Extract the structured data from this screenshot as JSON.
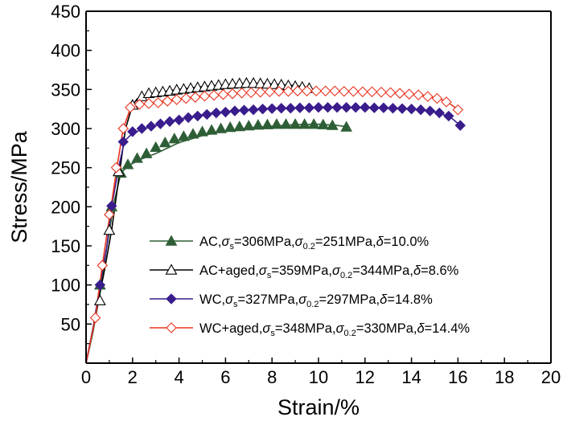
{
  "chart_data": {
    "type": "line",
    "xlabel": "Strain/%",
    "ylabel": "Stress/MPa",
    "xlim": [
      0,
      20
    ],
    "ylim": [
      0,
      450
    ],
    "xticks": [
      0,
      2,
      4,
      6,
      8,
      10,
      12,
      14,
      16,
      18,
      20
    ],
    "yticks": [
      50,
      100,
      150,
      200,
      250,
      300,
      350,
      400,
      450
    ],
    "grid": false,
    "legend_position": "bottom-right",
    "series": [
      {
        "name": "AC",
        "legend": {
          "prefix": "AC,",
          "ss": "306MPa",
          "s02": "251MPa",
          "delta": "10.0%"
        },
        "marker": "triangle-filled",
        "color": "#2e5e36",
        "curve": [
          [
            0,
            0
          ],
          [
            0.3,
            40
          ],
          [
            0.6,
            90
          ],
          [
            0.9,
            150
          ],
          [
            1.2,
            205
          ],
          [
            1.5,
            243
          ],
          [
            1.8,
            252
          ],
          [
            2.3,
            260
          ],
          [
            3,
            268
          ],
          [
            4,
            282
          ],
          [
            5,
            291
          ],
          [
            6,
            297
          ],
          [
            7,
            301
          ],
          [
            8,
            303
          ],
          [
            9,
            305
          ],
          [
            10,
            305.5
          ],
          [
            10.8,
            304
          ],
          [
            11.3,
            302
          ]
        ],
        "markers": [
          [
            0.6,
            100
          ],
          [
            1.1,
            200
          ],
          [
            1.5,
            243
          ],
          [
            1.8,
            254
          ],
          [
            2.2,
            262
          ],
          [
            2.6,
            268
          ],
          [
            3.0,
            276
          ],
          [
            3.4,
            282
          ],
          [
            3.8,
            287
          ],
          [
            4.2,
            290
          ],
          [
            4.6,
            293
          ],
          [
            5.0,
            296
          ],
          [
            5.4,
            298
          ],
          [
            5.8,
            300
          ],
          [
            6.2,
            301.5
          ],
          [
            6.6,
            302.5
          ],
          [
            7.0,
            303.5
          ],
          [
            7.4,
            304.5
          ],
          [
            7.8,
            305
          ],
          [
            8.2,
            305.5
          ],
          [
            8.6,
            305.5
          ],
          [
            9.0,
            305.5
          ],
          [
            9.4,
            305.5
          ],
          [
            9.8,
            305.5
          ],
          [
            10.2,
            305
          ],
          [
            10.6,
            304
          ],
          [
            11.2,
            302
          ]
        ]
      },
      {
        "name": "AC+aged",
        "legend": {
          "prefix": "AC+aged,",
          "ss": "359MPa",
          "s02": "344MPa",
          "delta": "8.6%"
        },
        "marker": "triangle-open",
        "color": "#000000",
        "curve": [
          [
            0,
            0
          ],
          [
            0.4,
            60
          ],
          [
            0.8,
            120
          ],
          [
            1.1,
            170
          ],
          [
            1.4,
            235
          ],
          [
            1.7,
            300
          ],
          [
            2.0,
            330
          ],
          [
            2.2,
            338
          ],
          [
            2.6,
            343
          ],
          [
            3.5,
            348
          ],
          [
            4.5,
            352
          ],
          [
            5.5,
            355
          ],
          [
            6.5,
            357
          ],
          [
            7.2,
            358
          ],
          [
            8,
            357
          ],
          [
            9,
            355
          ],
          [
            9.7,
            352
          ]
        ],
        "markers": [
          [
            0.6,
            80
          ],
          [
            1.0,
            170
          ],
          [
            1.4,
            245
          ],
          [
            2.0,
            330
          ],
          [
            2.4,
            341
          ],
          [
            2.7,
            345
          ],
          [
            3.0,
            346
          ],
          [
            3.3,
            347
          ],
          [
            3.6,
            348
          ],
          [
            3.9,
            349.5
          ],
          [
            4.2,
            350.5
          ],
          [
            4.5,
            351.5
          ],
          [
            4.8,
            352.5
          ],
          [
            5.1,
            353.5
          ],
          [
            5.4,
            354.5
          ],
          [
            5.7,
            355.5
          ],
          [
            6.0,
            356.5
          ],
          [
            6.3,
            357
          ],
          [
            6.6,
            357.5
          ],
          [
            6.9,
            358
          ],
          [
            7.2,
            358
          ],
          [
            7.5,
            357.5
          ],
          [
            7.8,
            357
          ],
          [
            8.1,
            356.5
          ],
          [
            8.4,
            356
          ],
          [
            8.7,
            355
          ],
          [
            9.0,
            354
          ],
          [
            9.3,
            353
          ],
          [
            9.6,
            351.5
          ]
        ]
      },
      {
        "name": "WC",
        "legend": {
          "prefix": "WC,",
          "ss": "327MPa",
          "s02": "297MPa",
          "delta": "14.8%"
        },
        "marker": "diamond-filled",
        "color": "#3a1d8c",
        "curve": [
          [
            0,
            0
          ],
          [
            0.3,
            45
          ],
          [
            0.6,
            100
          ],
          [
            0.9,
            150
          ],
          [
            1.1,
            200
          ],
          [
            1.4,
            250
          ],
          [
            1.65,
            284
          ],
          [
            2.0,
            294
          ],
          [
            2.5,
            300
          ],
          [
            3.5,
            308
          ],
          [
            4.5,
            315
          ],
          [
            5.5,
            320
          ],
          [
            6.5,
            323
          ],
          [
            7.5,
            325
          ],
          [
            8.5,
            326
          ],
          [
            9.5,
            326.5
          ],
          [
            10.5,
            327
          ],
          [
            11.5,
            327
          ],
          [
            12.5,
            326.5
          ],
          [
            13.5,
            326
          ],
          [
            14.5,
            324
          ],
          [
            15.2,
            320
          ],
          [
            15.7,
            314
          ],
          [
            16.1,
            304
          ]
        ],
        "markers": [
          [
            0.6,
            100
          ],
          [
            1.1,
            201
          ],
          [
            1.6,
            283
          ],
          [
            2.0,
            296
          ],
          [
            2.4,
            300
          ],
          [
            2.8,
            303
          ],
          [
            3.2,
            306
          ],
          [
            3.6,
            309
          ],
          [
            4.0,
            311
          ],
          [
            4.4,
            314
          ],
          [
            4.8,
            316
          ],
          [
            5.2,
            318
          ],
          [
            5.6,
            320
          ],
          [
            6.0,
            321
          ],
          [
            6.4,
            322.5
          ],
          [
            6.8,
            323.5
          ],
          [
            7.2,
            324
          ],
          [
            7.6,
            325
          ],
          [
            8.0,
            325.5
          ],
          [
            8.4,
            326
          ],
          [
            8.8,
            326
          ],
          [
            9.2,
            326.5
          ],
          [
            9.6,
            326.5
          ],
          [
            10.0,
            327
          ],
          [
            10.4,
            327
          ],
          [
            10.8,
            327
          ],
          [
            11.2,
            327
          ],
          [
            11.6,
            327
          ],
          [
            12.0,
            327
          ],
          [
            12.4,
            326.5
          ],
          [
            12.8,
            326.5
          ],
          [
            13.2,
            326
          ],
          [
            13.6,
            325.5
          ],
          [
            14.0,
            325
          ],
          [
            14.4,
            324
          ],
          [
            14.8,
            322.5
          ],
          [
            15.2,
            320
          ],
          [
            15.6,
            316
          ],
          [
            16.1,
            304
          ]
        ]
      },
      {
        "name": "WC+aged",
        "legend": {
          "prefix": "WC+aged,",
          "ss": "348MPa",
          "s02": "330MPa",
          "delta": "14.4%"
        },
        "marker": "diamond-open",
        "color": "#e8331e",
        "curve": [
          [
            0,
            0
          ],
          [
            0.4,
            58
          ],
          [
            0.7,
            125
          ],
          [
            1.0,
            185
          ],
          [
            1.3,
            245
          ],
          [
            1.6,
            300
          ],
          [
            1.9,
            325
          ],
          [
            2.2,
            330
          ],
          [
            2.6,
            332
          ],
          [
            3.5,
            336
          ],
          [
            4.5,
            340
          ],
          [
            5.5,
            343
          ],
          [
            6.5,
            345
          ],
          [
            7.5,
            346.5
          ],
          [
            8.5,
            347.5
          ],
          [
            9.5,
            348
          ],
          [
            10.5,
            348
          ],
          [
            11.5,
            347.5
          ],
          [
            12.5,
            346.5
          ],
          [
            13.5,
            345
          ],
          [
            14.5,
            342
          ],
          [
            15.2,
            338
          ],
          [
            15.6,
            333
          ],
          [
            16.0,
            324
          ]
        ],
        "markers": [
          [
            0.4,
            58
          ],
          [
            0.7,
            125
          ],
          [
            1.0,
            190
          ],
          [
            1.3,
            250
          ],
          [
            1.6,
            300
          ],
          [
            1.9,
            327
          ],
          [
            2.3,
            331
          ],
          [
            2.7,
            332
          ],
          [
            3.1,
            333
          ],
          [
            3.5,
            335
          ],
          [
            3.9,
            337
          ],
          [
            4.3,
            338.5
          ],
          [
            4.7,
            340
          ],
          [
            5.1,
            341.5
          ],
          [
            5.5,
            342.5
          ],
          [
            5.9,
            343.5
          ],
          [
            6.3,
            344.5
          ],
          [
            6.7,
            345.5
          ],
          [
            7.1,
            346
          ],
          [
            7.5,
            346.5
          ],
          [
            7.9,
            347
          ],
          [
            8.3,
            347.5
          ],
          [
            8.7,
            347.5
          ],
          [
            9.1,
            348
          ],
          [
            9.5,
            348
          ],
          [
            9.9,
            348
          ],
          [
            10.3,
            348
          ],
          [
            10.7,
            348
          ],
          [
            11.1,
            347.5
          ],
          [
            11.5,
            347.5
          ],
          [
            11.9,
            347
          ],
          [
            12.3,
            347
          ],
          [
            12.7,
            346.5
          ],
          [
            13.1,
            346
          ],
          [
            13.5,
            345
          ],
          [
            13.9,
            344
          ],
          [
            14.3,
            343
          ],
          [
            14.7,
            341
          ],
          [
            15.1,
            338.5
          ],
          [
            15.5,
            334
          ],
          [
            16.0,
            324
          ]
        ]
      }
    ]
  }
}
